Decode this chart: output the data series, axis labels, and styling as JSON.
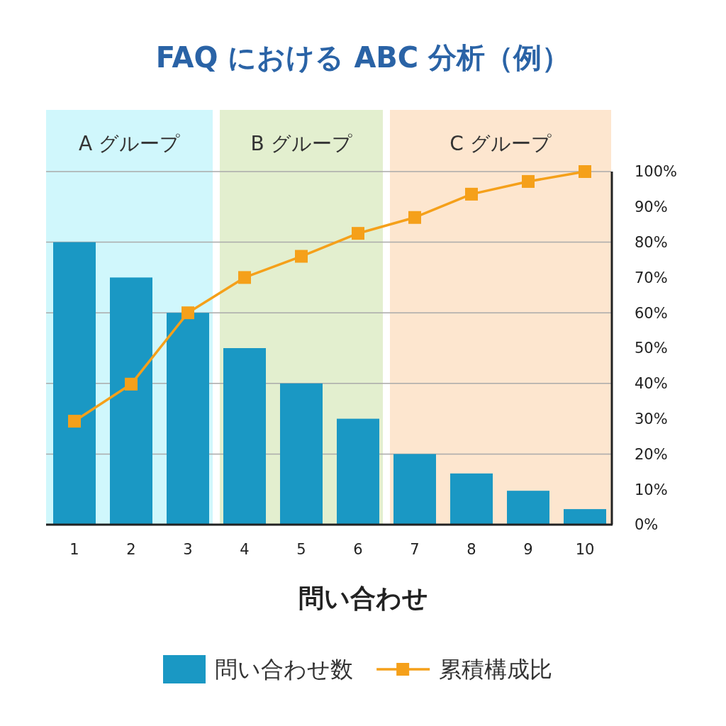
{
  "chart_data": {
    "type": "bar",
    "title": "FAQ における ABC 分析（例）",
    "xlabel": "問い合わせ",
    "categories": [
      "1",
      "2",
      "3",
      "4",
      "5",
      "6",
      "7",
      "8",
      "9",
      "10"
    ],
    "series": [
      {
        "name": "問い合わせ数",
        "color": "#1a98c4",
        "values": [
          80,
          70,
          60,
          50,
          40,
          30,
          20,
          14.5,
          9.6,
          4.4
        ]
      },
      {
        "name": "累積構成比",
        "type": "line",
        "color": "#f5a01a",
        "marker": "square",
        "values": [
          29.3,
          39.8,
          60,
          70,
          76,
          82.5,
          87,
          93.6,
          97.2,
          100
        ]
      }
    ],
    "ylim": [
      0,
      100
    ],
    "yticks": [
      {
        "value": 0,
        "label": "0%"
      },
      {
        "value": 10,
        "label": "10%"
      },
      {
        "value": 20,
        "label": "20%"
      },
      {
        "value": 30,
        "label": "30%"
      },
      {
        "value": 40,
        "label": "40%"
      },
      {
        "value": 50,
        "label": "50%"
      },
      {
        "value": 60,
        "label": "60%"
      },
      {
        "value": 70,
        "label": "70%"
      },
      {
        "value": 80,
        "label": "80%"
      },
      {
        "value": 90,
        "label": "90%"
      },
      {
        "value": 100,
        "label": "100%"
      }
    ],
    "bands": [
      {
        "axis": "x",
        "from": "1",
        "to": "3",
        "label": "A グループ",
        "color": "#d0f7fc"
      },
      {
        "axis": "x",
        "from": "4",
        "to": "6",
        "label": "B グループ",
        "color": "#e3efcf"
      },
      {
        "axis": "x",
        "from": "7",
        "to": "10",
        "label": "C グループ",
        "color": "#fde6cf"
      }
    ],
    "grid": "y",
    "legend": "bottom"
  }
}
